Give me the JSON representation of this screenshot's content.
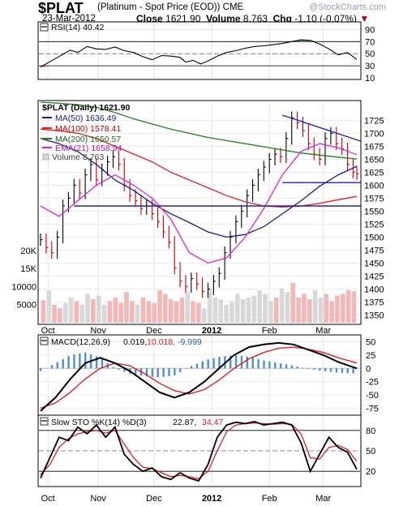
{
  "header": {
    "symbol": "$PLAT",
    "name": "(Platinum  - Spot Price (EOD))  CME",
    "date": "23-Mar-2012",
    "close_label": "Close",
    "close": "1621.90",
    "volume_label": "Volume",
    "volume": "8,763",
    "chg_label": "Chg",
    "chg": "-1.10 (-0.07%)",
    "watermark": "@StockCharts.com"
  },
  "colors": {
    "ma50": "#1c1c8c",
    "ma100": "#e02020",
    "ma200": "#208020",
    "ema21": "#e020e0",
    "volume_up": "#d8d8d8",
    "volume_down": "#f2b8b8",
    "macd_hist": "#4f8fcf",
    "trend": "#2020c0"
  },
  "x_axis": {
    "months": [
      {
        "label": "Oct",
        "day": 4
      },
      {
        "label": "Nov",
        "day": 31
      },
      {
        "label": "Dec",
        "day": 61
      },
      {
        "label": "2012",
        "day": 92
      },
      {
        "label": "Feb",
        "day": 123
      },
      {
        "label": "Mar",
        "day": 152
      }
    ]
  },
  "chart_data": [
    {
      "type": "line",
      "panel": "rsi",
      "label": "RSI(14) 40.42",
      "ylim": [
        10,
        100
      ],
      "ticks": [
        90,
        70,
        50,
        30,
        10
      ],
      "reference_lines": [
        70,
        30
      ],
      "series": [
        {
          "name": "RSI(14)",
          "x": [
            0,
            8,
            16,
            20,
            25,
            30,
            35,
            40,
            45,
            50,
            55,
            60,
            65,
            70,
            75,
            78,
            82,
            86,
            90,
            95,
            100,
            105,
            110,
            115,
            120,
            125,
            130,
            135,
            140,
            145,
            150,
            155,
            160,
            165,
            170
          ],
          "values": [
            28,
            42,
            56,
            52,
            62,
            58,
            57,
            61,
            55,
            52,
            45,
            40,
            47,
            46,
            44,
            36,
            39,
            33,
            38,
            46,
            52,
            55,
            59,
            62,
            63,
            65,
            67,
            70,
            73,
            72,
            66,
            58,
            48,
            52,
            40.42
          ]
        }
      ]
    },
    {
      "type": "line",
      "panel": "price",
      "title": "$PLAT (Daily) 1621.90",
      "ylim": [
        1335,
        1760
      ],
      "ticks": [
        1725,
        1700,
        1675,
        1650,
        1625,
        1600,
        1575,
        1550,
        1525,
        1500,
        1475,
        1450,
        1425,
        1400,
        1375,
        1350
      ],
      "series": [
        {
          "name": "$PLAT (Daily)",
          "x": [
            0,
            3,
            6,
            9,
            12,
            15,
            18,
            21,
            24,
            27,
            30,
            33,
            36,
            39,
            42,
            45,
            48,
            51,
            54,
            57,
            60,
            63,
            66,
            69,
            72,
            75,
            78,
            81,
            84,
            87,
            90,
            93,
            96,
            99,
            102,
            105,
            108,
            111,
            114,
            117,
            120,
            123,
            126,
            129,
            132,
            135,
            138,
            141,
            144,
            147,
            150,
            153,
            156,
            159,
            162,
            165,
            168,
            170
          ],
          "values": [
            1495,
            1480,
            1470,
            1500,
            1560,
            1575,
            1600,
            1585,
            1620,
            1640,
            1610,
            1630,
            1645,
            1655,
            1640,
            1600,
            1580,
            1570,
            1555,
            1560,
            1545,
            1530,
            1510,
            1490,
            1440,
            1415,
            1405,
            1420,
            1410,
            1395,
            1400,
            1415,
            1430,
            1470,
            1500,
            1530,
            1550,
            1580,
            1600,
            1620,
            1635,
            1650,
            1660,
            1655,
            1690,
            1730,
            1720,
            1705,
            1680,
            1660,
            1650,
            1690,
            1700,
            1680,
            1670,
            1640,
            1625,
            1621.9
          ]
        },
        {
          "name": "MA(50) 1636.49",
          "x": [
            0,
            10,
            20,
            30,
            40,
            50,
            60,
            70,
            80,
            90,
            100,
            110,
            120,
            130,
            140,
            150,
            160,
            170
          ],
          "values": [
            1690,
            1680,
            1665,
            1640,
            1610,
            1590,
            1565,
            1545,
            1528,
            1510,
            1500,
            1505,
            1520,
            1545,
            1570,
            1598,
            1620,
            1636.49
          ]
        },
        {
          "name": "MA(100) 1578.41",
          "x": [
            0,
            10,
            20,
            30,
            40,
            50,
            60,
            70,
            80,
            90,
            100,
            110,
            120,
            130,
            140,
            150,
            160,
            170
          ],
          "values": [
            1708,
            1705,
            1700,
            1690,
            1675,
            1660,
            1645,
            1625,
            1610,
            1595,
            1580,
            1568,
            1560,
            1558,
            1560,
            1565,
            1572,
            1578.41
          ]
        },
        {
          "name": "MA(200) 1650.57",
          "x": [
            0,
            10,
            20,
            30,
            40,
            50,
            60,
            70,
            80,
            90,
            100,
            110,
            120,
            130,
            140,
            150,
            160,
            170
          ],
          "values": [
            1760,
            1758,
            1755,
            1750,
            1740,
            1728,
            1718,
            1708,
            1700,
            1692,
            1686,
            1680,
            1674,
            1668,
            1662,
            1658,
            1654,
            1650.57
          ]
        },
        {
          "name": "EMA(21) 1658.94",
          "x": [
            0,
            10,
            20,
            30,
            40,
            50,
            60,
            70,
            80,
            90,
            100,
            110,
            120,
            130,
            140,
            150,
            160,
            170
          ],
          "values": [
            1560,
            1540,
            1570,
            1600,
            1620,
            1600,
            1575,
            1535,
            1470,
            1450,
            1460,
            1500,
            1555,
            1620,
            1665,
            1680,
            1672,
            1658.94
          ]
        },
        {
          "name": "Volume 8,763",
          "x": [],
          "values": []
        }
      ],
      "trendlines": [
        {
          "x": [
            130,
            172
          ],
          "values": [
            1735,
            1685
          ]
        },
        {
          "x": [
            18,
            172
          ],
          "values": [
            1560,
            1560
          ]
        },
        {
          "x": [
            130,
            172
          ],
          "values": [
            1605,
            1605
          ]
        }
      ]
    },
    {
      "type": "bar",
      "panel": "volume",
      "ylim": [
        0,
        22000
      ],
      "ticks": [
        {
          "label": "20K",
          "value": 20000
        },
        {
          "label": "15K",
          "value": 15000
        },
        {
          "label": "10000",
          "value": 10000
        },
        {
          "label": "5000",
          "value": 5000
        }
      ],
      "bars": 57,
      "values": [
        6200,
        9000,
        5000,
        4000,
        5500,
        7000,
        6000,
        5000,
        8000,
        6500,
        7500,
        5000,
        6000,
        7000,
        5500,
        8500,
        6000,
        5000,
        7000,
        6000,
        5500,
        9000,
        8000,
        6500,
        6000,
        7000,
        8500,
        6000,
        5500,
        4000,
        9500,
        7000,
        6500,
        5000,
        6000,
        8000,
        6500,
        7000,
        7500,
        9000,
        8000,
        6000,
        7000,
        9500,
        8500,
        11000,
        7000,
        8000,
        6500,
        9000,
        7000,
        8000,
        6000,
        7500,
        8000,
        9000,
        8763
      ],
      "down": [
        1,
        0,
        1,
        1,
        0,
        0,
        1,
        0,
        0,
        1,
        0,
        0,
        1,
        1,
        1,
        1,
        1,
        0,
        1,
        1,
        1,
        1,
        1,
        1,
        1,
        1,
        0,
        1,
        1,
        0,
        0,
        0,
        0,
        0,
        0,
        0,
        0,
        0,
        0,
        0,
        0,
        0,
        1,
        0,
        0,
        1,
        1,
        1,
        1,
        0,
        0,
        1,
        1,
        1,
        1,
        1,
        1
      ]
    },
    {
      "type": "line",
      "panel": "macd",
      "label": "MACD(12,26,9) 0.019, 10.018, -9.999",
      "label_parts": {
        "name": "MACD(12,26,9)",
        "macd": "0.019,",
        "signal": "10.018,",
        "hist": "-9.999"
      },
      "ylim": [
        -85,
        60
      ],
      "ticks": [
        50,
        25,
        0,
        -25,
        -50,
        -75
      ],
      "series": [
        {
          "name": "MACD",
          "x": [
            0,
            8,
            16,
            24,
            32,
            40,
            48,
            56,
            64,
            72,
            80,
            88,
            96,
            104,
            112,
            120,
            128,
            136,
            144,
            152,
            160,
            170
          ],
          "values": [
            -80,
            -55,
            -20,
            10,
            20,
            10,
            -5,
            -25,
            -45,
            -55,
            -45,
            -25,
            0,
            25,
            40,
            45,
            48,
            45,
            35,
            25,
            12,
            0.019
          ]
        },
        {
          "name": "Signal",
          "x": [
            0,
            8,
            16,
            24,
            32,
            40,
            48,
            56,
            64,
            72,
            80,
            88,
            96,
            104,
            112,
            120,
            128,
            136,
            144,
            152,
            160,
            170
          ],
          "values": [
            -75,
            -65,
            -45,
            -20,
            0,
            10,
            5,
            -10,
            -28,
            -42,
            -48,
            -40,
            -22,
            0,
            18,
            30,
            38,
            40,
            36,
            30,
            20,
            10.018
          ]
        }
      ]
    },
    {
      "type": "line",
      "panel": "sto",
      "label": "Slow STO %K(14) %D(3) 22.87, 34.47",
      "label_parts": {
        "name": "Slow STO %K(14) %D(3)",
        "k": "22.87,",
        "d": "34.47"
      },
      "ylim": [
        0,
        100
      ],
      "ticks": [
        80,
        50,
        20
      ],
      "reference_lines": [
        80,
        20
      ],
      "series": [
        {
          "name": "%K",
          "x": [
            0,
            5,
            10,
            15,
            20,
            25,
            30,
            35,
            40,
            45,
            50,
            55,
            60,
            65,
            70,
            75,
            80,
            85,
            90,
            95,
            100,
            105,
            110,
            115,
            120,
            125,
            130,
            135,
            140,
            145,
            150,
            155,
            160,
            165,
            170
          ],
          "values": [
            10,
            40,
            70,
            65,
            85,
            75,
            88,
            70,
            85,
            45,
            30,
            20,
            25,
            12,
            8,
            18,
            10,
            6,
            30,
            70,
            88,
            92,
            90,
            93,
            88,
            90,
            92,
            88,
            62,
            20,
            45,
            70,
            55,
            48,
            22.87
          ]
        },
        {
          "name": "%D",
          "x": [
            0,
            5,
            10,
            15,
            20,
            25,
            30,
            35,
            40,
            45,
            50,
            55,
            60,
            65,
            70,
            75,
            80,
            85,
            90,
            95,
            100,
            105,
            110,
            115,
            120,
            125,
            130,
            135,
            140,
            145,
            150,
            155,
            160,
            165,
            170
          ],
          "values": [
            15,
            30,
            55,
            68,
            75,
            78,
            80,
            76,
            80,
            60,
            40,
            26,
            24,
            18,
            12,
            14,
            12,
            9,
            20,
            50,
            78,
            88,
            90,
            91,
            90,
            89,
            90,
            89,
            75,
            40,
            38,
            55,
            58,
            52,
            34.47
          ]
        }
      ]
    }
  ]
}
